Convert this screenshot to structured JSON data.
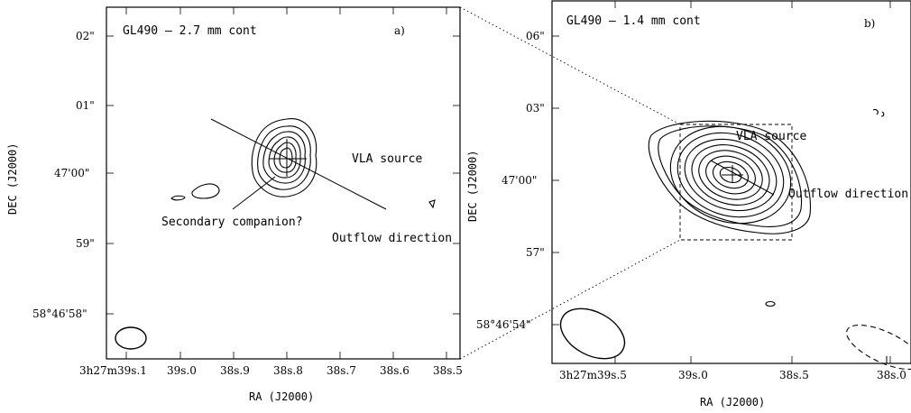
{
  "panel_a": {
    "title": "GL490 – 2.7 mm cont",
    "letter": "a)",
    "y_ticks": [
      "02\"",
      "01\"",
      "47'00\"",
      "59\"",
      "58°46'58\""
    ],
    "x_ticks": [
      "3h27m39s.1",
      "39s.0",
      "38s.9",
      "38s.8",
      "38s.7",
      "38s.6",
      "38s.5"
    ],
    "x_axis_label": "RA (J2000)",
    "y_axis_label": "DEC (J2000)",
    "annotations": {
      "vla": "VLA source",
      "companion": "Secondary companion?",
      "outflow": "Outflow direction"
    }
  },
  "panel_b": {
    "title": "GL490 – 1.4 mm cont",
    "letter": "b)",
    "y_ticks": [
      "06\"",
      "03\"",
      "47'00\"",
      "57\"",
      "58°46'54\""
    ],
    "x_ticks": [
      "3h27m39s.5",
      "39s.0",
      "38s.5",
      "38s.0"
    ],
    "x_axis_label": "RA (J2000)",
    "y_axis_label": "DEC (J2000)",
    "annotations": {
      "vla": "VLA source",
      "outflow": "Outflow direction"
    }
  }
}
